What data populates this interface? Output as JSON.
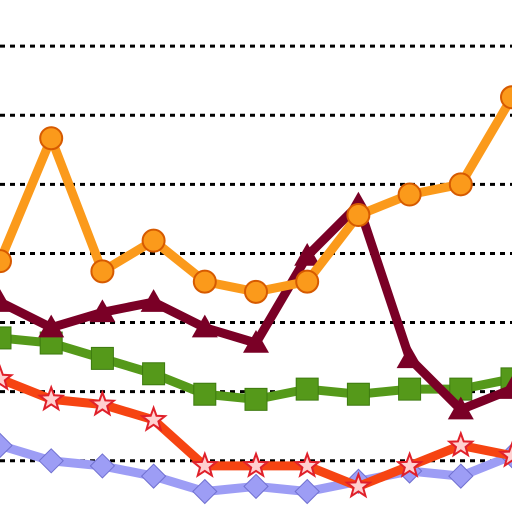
{
  "chart_data": {
    "type": "line",
    "x": [
      0,
      1,
      2,
      3,
      4,
      5,
      6,
      7,
      8,
      9,
      10
    ],
    "ylim": [
      0,
      100
    ],
    "grid": true,
    "grid_values": [
      10,
      23.5,
      37,
      50.5,
      64,
      77.5,
      91
    ],
    "series": [
      {
        "color": "#fb9a1b",
        "marker": "circle",
        "values": [
          49,
          73,
          47,
          53,
          45,
          43,
          45,
          58,
          62,
          64,
          81
        ]
      },
      {
        "color": "#7a0026",
        "marker": "triangle",
        "values": [
          41,
          36,
          39,
          41,
          36,
          33,
          50,
          60,
          30,
          20,
          24
        ]
      },
      {
        "color": "#55991a",
        "marker": "square",
        "values": [
          34,
          33,
          30,
          27,
          23,
          22,
          24,
          23,
          24,
          24,
          26
        ]
      },
      {
        "color": "#f64412",
        "marker": "star",
        "values": [
          26,
          22,
          21,
          18,
          9,
          9,
          9,
          5,
          9,
          13,
          11
        ]
      },
      {
        "color": "#9d9df5",
        "marker": "diamond",
        "values": [
          13,
          10,
          9,
          7,
          4,
          5,
          4,
          6,
          8,
          7,
          11
        ]
      }
    ]
  }
}
